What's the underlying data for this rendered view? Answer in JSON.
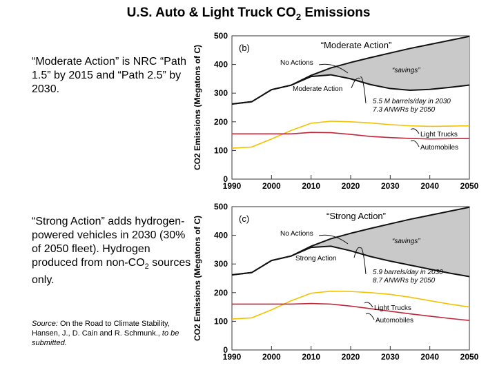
{
  "title": {
    "main": "U.S. Auto & Light Truck CO",
    "sub": "2",
    "tail": " Emissions"
  },
  "text1": "“Moderate Action” is NRC “Path 1.5” by 2015 and “Path 2.5” by 2030.",
  "text2": {
    "a": "“Strong Action” adds hydrogen-powered vehicles in 2030 (30% of 2050 fleet). Hydrogen produced from non-CO",
    "sub": "2",
    "b": " sources only."
  },
  "source": {
    "label": "Source:",
    "body": " On the Road to Climate Stability, Hansen, J., D. Cain and R. Schmunk., ",
    "tail": "to be submitted."
  },
  "colors": {
    "black": "#111111",
    "yellow": "#f2c200",
    "red": "#c0263a",
    "fill": "#c9c9c9",
    "axis": "#333333"
  },
  "chart_data": [
    {
      "type": "line",
      "panel_label": "(b)",
      "heading": "“Moderate Action”",
      "ylabel": "CO2 Emissions (Megatons of C)",
      "xlim": [
        1990,
        2050
      ],
      "ylim": [
        0,
        500
      ],
      "x_ticks": [
        "1990",
        "2000",
        "2010",
        "2020",
        "2030",
        "2040",
        "2050"
      ],
      "y_ticks": [
        "0",
        "100",
        "200",
        "300",
        "400",
        "500"
      ],
      "x": [
        1990,
        1995,
        2000,
        2005,
        2010,
        2015,
        2020,
        2025,
        2030,
        2035,
        2040,
        2045,
        2050
      ],
      "series": [
        {
          "name": "No Actions",
          "color": "#111111",
          "values": [
            262,
            270,
            312,
            328,
            362,
            388,
            407,
            424,
            440,
            456,
            470,
            484,
            498
          ]
        },
        {
          "name": "Moderate Action",
          "color": "#111111",
          "values": [
            262,
            270,
            312,
            328,
            358,
            364,
            350,
            330,
            316,
            310,
            313,
            320,
            328
          ]
        },
        {
          "name": "Light Trucks",
          "color": "#f2c200",
          "values": [
            108,
            112,
            140,
            170,
            195,
            202,
            200,
            196,
            190,
            186,
            184,
            185,
            186
          ]
        },
        {
          "name": "Automobiles",
          "color": "#c0263a",
          "values": [
            158,
            158,
            158,
            158,
            163,
            162,
            156,
            149,
            145,
            142,
            140,
            141,
            142
          ]
        }
      ],
      "annotations": [
        "No Actions",
        "Moderate Action",
        "“savings”",
        "5.5 M barrels/day in 2030",
        "7.3 ANWRs by 2050",
        "Light Trucks",
        "Automobiles"
      ]
    },
    {
      "type": "line",
      "panel_label": "(c)",
      "heading": "“Strong Action”",
      "ylabel": "CO2 Emissions (Megatons of C)",
      "xlim": [
        1990,
        2050
      ],
      "ylim": [
        0,
        500
      ],
      "x_ticks": [
        "1990",
        "2000",
        "2010",
        "2020",
        "2030",
        "2040",
        "2050"
      ],
      "y_ticks": [
        "0",
        "100",
        "200",
        "300",
        "400",
        "500"
      ],
      "x": [
        1990,
        1995,
        2000,
        2005,
        2010,
        2015,
        2020,
        2025,
        2030,
        2035,
        2040,
        2045,
        2050
      ],
      "series": [
        {
          "name": "No Actions",
          "color": "#111111",
          "values": [
            262,
            270,
            312,
            328,
            362,
            388,
            407,
            424,
            440,
            456,
            470,
            484,
            498
          ]
        },
        {
          "name": "Strong Action",
          "color": "#111111",
          "values": [
            262,
            270,
            312,
            328,
            358,
            362,
            346,
            326,
            310,
            296,
            282,
            268,
            256
          ]
        },
        {
          "name": "Light Trucks",
          "color": "#f2c200",
          "values": [
            108,
            112,
            140,
            172,
            198,
            205,
            204,
            200,
            194,
            184,
            172,
            160,
            150
          ]
        },
        {
          "name": "Automobiles",
          "color": "#c0263a",
          "values": [
            160,
            160,
            160,
            160,
            162,
            160,
            153,
            144,
            135,
            126,
            118,
            110,
            103
          ]
        }
      ],
      "annotations": [
        "No Actions",
        "Strong Action",
        "“savings”",
        "5.9 barrels/day in 2030",
        "8.7 ANWRs by 2050",
        "Light Trucks",
        "Automobiles"
      ]
    }
  ]
}
